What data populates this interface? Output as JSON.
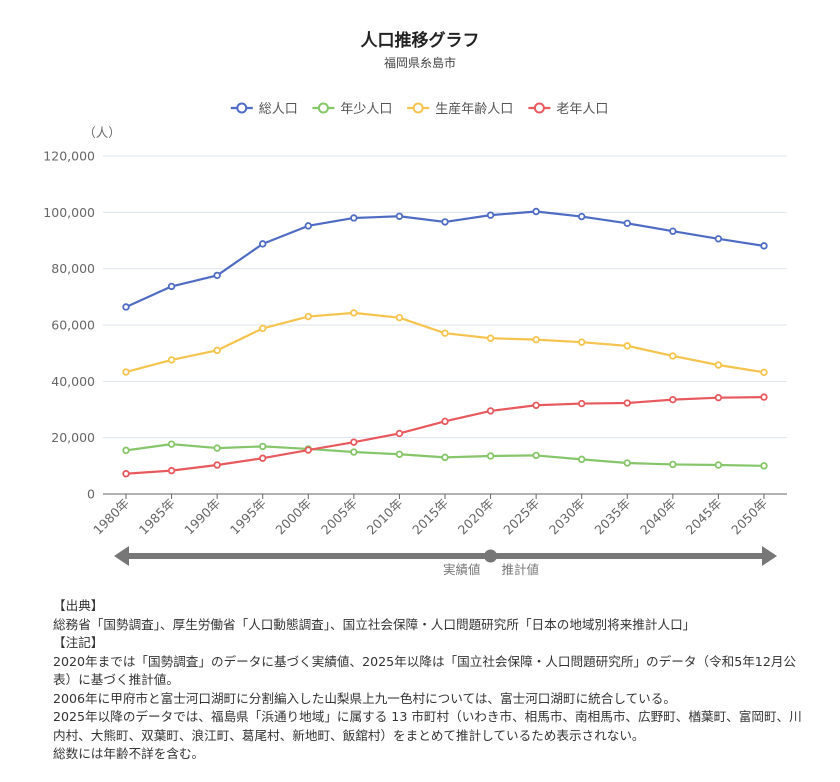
{
  "chart_data": {
    "type": "line",
    "title": "人口推移グラフ",
    "subtitle": "福岡県糸島市",
    "ylabel": "（人）",
    "xlabel": "",
    "ylim": [
      0,
      120000
    ],
    "yticks": [
      0,
      20000,
      40000,
      60000,
      80000,
      100000,
      120000
    ],
    "ytick_labels": [
      "0",
      "20,000",
      "40,000",
      "60,000",
      "80,000",
      "100,000",
      "120,000"
    ],
    "grid": true,
    "legend_position": "top-center",
    "categories": [
      "1980年",
      "1985年",
      "1990年",
      "1995年",
      "2000年",
      "2005年",
      "2010年",
      "2015年",
      "2020年",
      "2025年",
      "2030年",
      "2035年",
      "2040年",
      "2045年",
      "2050年"
    ],
    "series": [
      {
        "name": "総人口",
        "color": "#4f6cc4",
        "values": [
          66400,
          73700,
          77600,
          88800,
          95200,
          98000,
          98600,
          96600,
          99000,
          100300,
          98500,
          96100,
          93300,
          90600,
          88100
        ]
      },
      {
        "name": "年少人口",
        "color": "#86c66a",
        "values": [
          15500,
          17700,
          16300,
          16900,
          16000,
          14900,
          14100,
          13000,
          13500,
          13700,
          12300,
          11000,
          10500,
          10300,
          10000
        ]
      },
      {
        "name": "生産年齢人口",
        "color": "#f5c44e",
        "values": [
          43300,
          47600,
          51000,
          58800,
          63000,
          64300,
          62600,
          57100,
          55300,
          54800,
          53900,
          52600,
          49000,
          45800,
          43200
        ]
      },
      {
        "name": "老年人口",
        "color": "#e8595e",
        "values": [
          7200,
          8300,
          10300,
          12700,
          15600,
          18400,
          21500,
          25800,
          29500,
          31500,
          32100,
          32300,
          33500,
          34200,
          34400
        ]
      }
    ],
    "annotations": {
      "actual_label": "実績値",
      "projected_label": "推計値",
      "split_category": "2020年",
      "arrow_color": "#777777"
    }
  },
  "notes": {
    "source_heading": "【出典】",
    "source_text": "総務省「国勢調査」、厚生労働省「人口動態調査」、国立社会保障・人口問題研究所「日本の地域別将来推計人口」",
    "notes_heading": "【注記】",
    "note_lines": [
      "2020年までは「国勢調査」のデータに基づく実績値、2025年以降は「国立社会保障・人口問題研究所」のデータ（令和5年12月公表）に基づく推計値。",
      "2006年に甲府市と富士河口湖町に分割編入した山梨県上九一色村については、富士河口湖町に統合している。",
      "2025年以降のデータでは、福島県「浜通り地域」に属する 13 市町村（いわき市、相馬市、南相馬市、広野町、楢葉町、富岡町、川内村、大熊町、双葉町、浪江町、葛尾村、新地町、飯舘村）をまとめて推計しているため表示されない。",
      "総数には年齢不詳を含む。"
    ]
  }
}
